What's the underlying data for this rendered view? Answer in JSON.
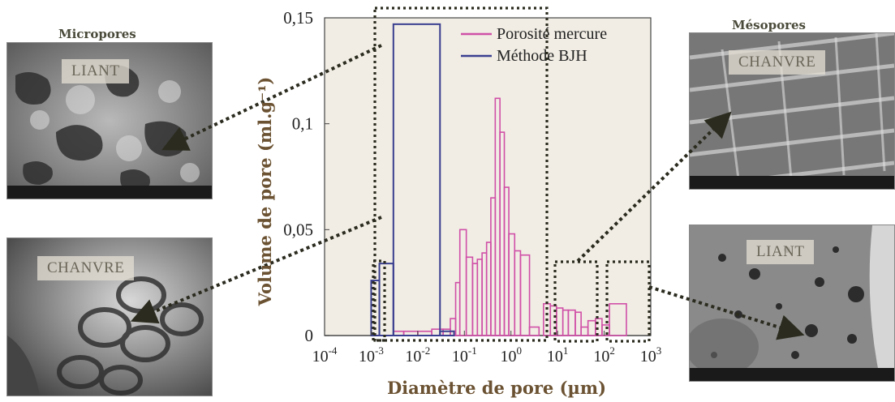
{
  "figure": {
    "left_title": "Micropores",
    "right_title": "Mésopores",
    "photos": [
      {
        "label": "LIANT"
      },
      {
        "label": "CHANVRE"
      },
      {
        "label": "CHANVRE"
      },
      {
        "label": "LIANT"
      }
    ]
  },
  "colors": {
    "mercury": "#d04fa7",
    "bjh": "#3a3f8f",
    "plot_bg": "#f1ede4",
    "annotation": "#2b2b1f"
  },
  "chart_data": {
    "type": "bar",
    "title": "",
    "xlabel": "Diamètre de pore (µm)",
    "ylabel": "Volume de pore (ml.g⁻¹)",
    "x_scale": "log",
    "xlim": [
      0.0001,
      1000
    ],
    "ylim": [
      0,
      0.15
    ],
    "x_ticks": [
      {
        "base": "10",
        "exp": "-4"
      },
      {
        "base": "10",
        "exp": "-3"
      },
      {
        "base": "10",
        "exp": "-2"
      },
      {
        "base": "10",
        "exp": "-1"
      },
      {
        "base": "10",
        "exp": "0"
      },
      {
        "base": "10",
        "exp": "1"
      },
      {
        "base": "10",
        "exp": "2"
      },
      {
        "base": "10",
        "exp": "3"
      }
    ],
    "y_ticks": [
      {
        "value": 0,
        "label": "0"
      },
      {
        "value": 0.05,
        "label": "0,05"
      },
      {
        "value": 0.1,
        "label": "0,1"
      },
      {
        "value": 0.15,
        "label": "0,15"
      }
    ],
    "legend_position": "top-right",
    "series": [
      {
        "name": "Porosité mercure",
        "bins": [
          [
            0.003,
            0.005,
            0.002
          ],
          [
            0.005,
            0.01,
            0.002
          ],
          [
            0.01,
            0.02,
            0.002
          ],
          [
            0.02,
            0.035,
            0.003
          ],
          [
            0.035,
            0.05,
            0.003
          ],
          [
            0.05,
            0.065,
            0.008
          ],
          [
            0.065,
            0.08,
            0.025
          ],
          [
            0.08,
            0.11,
            0.05
          ],
          [
            0.11,
            0.15,
            0.037
          ],
          [
            0.15,
            0.19,
            0.034
          ],
          [
            0.19,
            0.24,
            0.036
          ],
          [
            0.24,
            0.3,
            0.039
          ],
          [
            0.3,
            0.37,
            0.044
          ],
          [
            0.37,
            0.46,
            0.065
          ],
          [
            0.46,
            0.58,
            0.112
          ],
          [
            0.58,
            0.72,
            0.096
          ],
          [
            0.72,
            0.9,
            0.07
          ],
          [
            0.9,
            1.2,
            0.048
          ],
          [
            1.2,
            1.6,
            0.04
          ],
          [
            1.6,
            2.5,
            0.038
          ],
          [
            2.5,
            4,
            0.004
          ],
          [
            5,
            7,
            0.015
          ],
          [
            7,
            9.5,
            0.014
          ],
          [
            9.5,
            13,
            0.013
          ],
          [
            13,
            17,
            0.012
          ],
          [
            17,
            24,
            0.012
          ],
          [
            24,
            32,
            0.011
          ],
          [
            32,
            45,
            0.004
          ],
          [
            45,
            65,
            0.007
          ],
          [
            65,
            90,
            0.008
          ],
          [
            90,
            130,
            0.005
          ],
          [
            130,
            300,
            0.015
          ]
        ]
      },
      {
        "name": "Méthode BJH",
        "bins": [
          [
            0.001,
            0.0015,
            0.026
          ],
          [
            0.0015,
            0.003,
            0.034
          ],
          [
            0.003,
            0.03,
            0.147
          ],
          [
            0.03,
            0.06,
            0.002
          ]
        ]
      }
    ]
  }
}
